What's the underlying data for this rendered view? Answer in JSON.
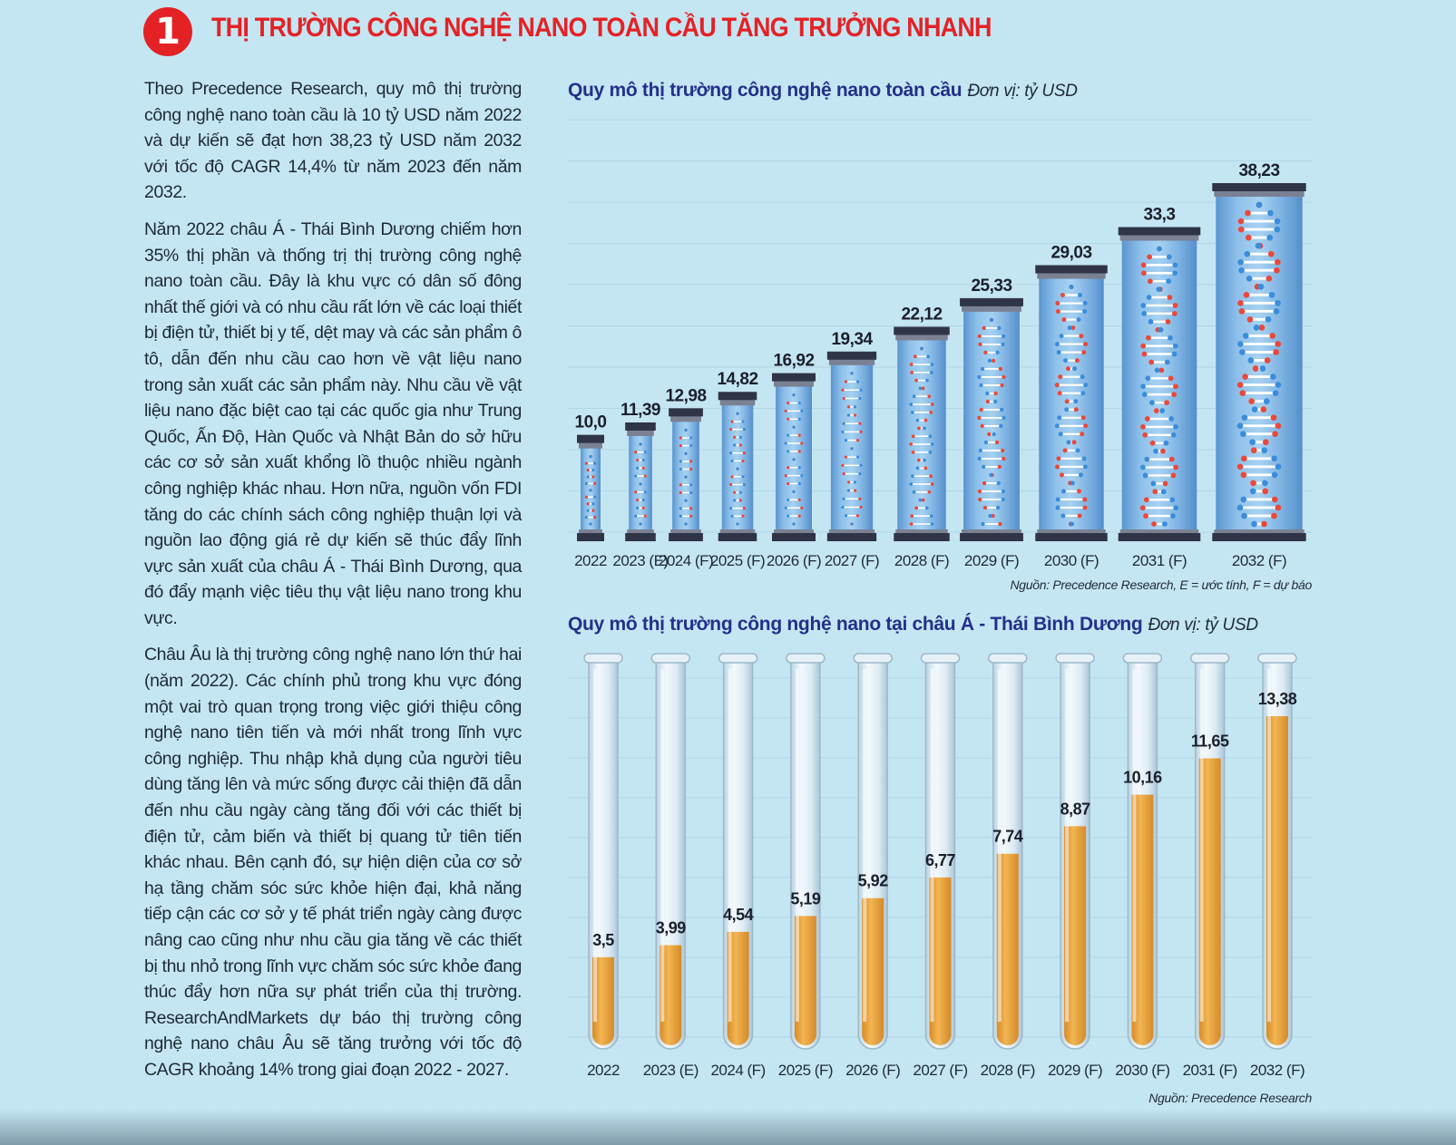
{
  "header": {
    "badge_number": "1",
    "title": "THỊ TRƯỜNG CÔNG NGHỆ NANO TOÀN CẦU TĂNG TRƯỞNG NHANH"
  },
  "article": {
    "paragraphs": [
      "Theo Precedence Research, quy mô thị trường công nghệ nano toàn cầu là 10 tỷ USD năm 2022 và dự kiến sẽ đạt hơn 38,23 tỷ USD năm 2032 với tốc độ CAGR 14,4% từ năm 2023 đến năm 2032.",
      "Năm 2022 châu Á - Thái Bình Dương chiếm hơn 35% thị phần và thống trị thị trường công nghệ nano toàn cầu. Đây là khu vực có dân số đông nhất thế giới và có nhu cầu rất lớn về các loại thiết bị điện tử, thiết bị y tế, dệt may và các sản phẩm ô tô, dẫn đến nhu cầu cao hơn về vật liệu nano trong sản xuất các sản phẩm này. Nhu cầu về vật liệu nano đặc biệt cao tại các quốc gia như Trung Quốc, Ấn Độ, Hàn Quốc và Nhật Bản do sở hữu các cơ sở sản xuất khổng lồ thuộc nhiều ngành công nghiệp khác nhau. Hơn nữa, nguồn vốn FDI tăng do các chính sách công nghiệp thuận lợi và nguồn lao động giá rẻ dự kiến sẽ thúc đẩy lĩnh vực sản xuất của châu Á - Thái Bình Dương, qua đó đẩy mạnh việc tiêu thụ vật liệu nano trong khu vực.",
      "Châu Âu là thị trường công nghệ nano lớn thứ hai (năm 2022). Các chính phủ trong khu vực đóng một vai trò quan trọng trong việc giới thiệu công nghệ nano tiên tiến và mới nhất trong lĩnh vực công nghiệp. Thu nhập khả dụng của người tiêu dùng tăng lên và mức sống được cải thiện đã dẫn đến nhu cầu ngày càng tăng đối với các thiết bị điện tử, cảm biến và thiết bị quang tử tiên tiến khác nhau. Bên cạnh đó, sự hiện diện của cơ sở hạ tầng chăm sóc sức khỏe hiện đại, khả năng tiếp cận các cơ sở y tế phát triển ngày càng được nâng cao cũng như nhu cầu gia tăng về các thiết bị thu nhỏ trong lĩnh vực chăm sóc sức khỏe đang thúc đẩy hơn nữa sự phát triển của thị trường. ResearchAndMarkets dự báo thị trường công nghệ nano châu Âu sẽ tăng trưởng với tốc độ CAGR khoảng 14% trong giai đoạn 2022 - 2027."
    ]
  },
  "colors": {
    "title_red": "#e42226",
    "chart_title_blue": "#23308a",
    "background": "#c4e6f2",
    "tube_glass": "#6ea6dc",
    "cap_dark": "#2f3446",
    "dna_red": "#e8493a",
    "dna_blue": "#3a8ddc",
    "liquid_orange": "#e9a33d"
  },
  "chart_data": [
    {
      "type": "bar",
      "style": "dna-cylinders",
      "title": "Quy mô thị trường công nghệ nano toàn cầu",
      "unit": "Đơn vị: tỷ USD",
      "categories": [
        "2022",
        "2023 (E)",
        "2024 (F)",
        "2025 (F)",
        "2026 (F)",
        "2027 (F)",
        "2028 (F)",
        "2029 (F)",
        "2030 (F)",
        "2031 (F)",
        "2032 (F)"
      ],
      "values": [
        10.0,
        11.39,
        12.98,
        14.82,
        16.92,
        19.34,
        22.12,
        25.33,
        29.03,
        33.3,
        38.23
      ],
      "value_labels": [
        "10,0",
        "11,39",
        "12,98",
        "14,82",
        "16,92",
        "19,34",
        "22,12",
        "25,33",
        "29,03",
        "33,3",
        "38,23"
      ],
      "ylim": [
        0,
        40
      ],
      "grid": true,
      "source": "Nguồn: Precedence Research, E = ước tính, F = dự báo"
    },
    {
      "type": "bar",
      "style": "test-tubes",
      "title": "Quy mô thị trường công nghệ nano tại châu Á - Thái Bình Dương",
      "unit": "Đơn vị: tỷ USD",
      "categories": [
        "2022",
        "2023 (E)",
        "2024 (F)",
        "2025 (F)",
        "2026 (F)",
        "2027 (F)",
        "2028 (F)",
        "2029 (F)",
        "2030 (F)",
        "2031 (F)",
        "2032 (F)"
      ],
      "values": [
        3.5,
        3.99,
        4.54,
        5.19,
        5.92,
        6.77,
        7.74,
        8.87,
        10.16,
        11.65,
        13.38
      ],
      "value_labels": [
        "3,5",
        "3,99",
        "4,54",
        "5,19",
        "5,92",
        "6,77",
        "7,74",
        "8,87",
        "10,16",
        "11,65",
        "13,38"
      ],
      "ylim": [
        0,
        16
      ],
      "grid": true,
      "source": "Nguồn: Precedence Research"
    }
  ]
}
